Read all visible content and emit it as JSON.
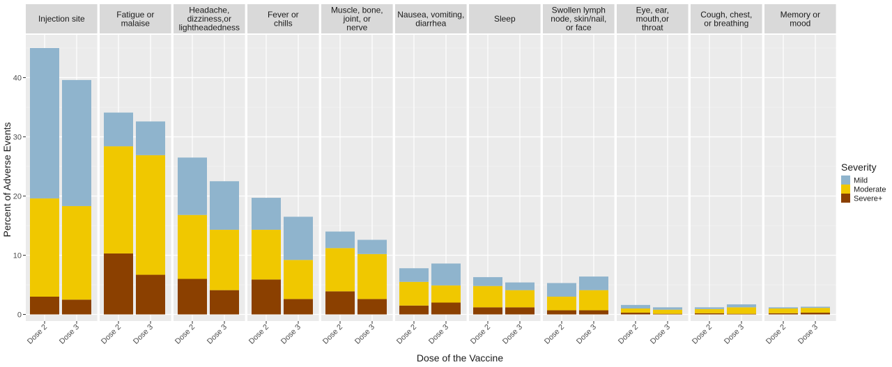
{
  "chart_data": {
    "type": "bar",
    "stacked": true,
    "facets": [
      "Injection site",
      "Fatigue or malaise",
      "Headache, dizziness,or lightheadedness",
      "Fever or chills",
      "Muscle, bone, joint, or nerve",
      "Nausea, vomiting, diarrhea",
      "Sleep",
      "Swollen lymph node, skin/nail, or face",
      "Eye, ear, mouth,or throat",
      "Cough, chest, or breathing",
      "Memory or mood"
    ],
    "facet_labels": [
      [
        "Injection site"
      ],
      [
        "Fatigue or",
        "malaise"
      ],
      [
        "Headache,",
        "dizziness,or",
        "lightheadedness"
      ],
      [
        "Fever or",
        "chills"
      ],
      [
        "Muscle, bone,",
        "joint, or",
        "nerve"
      ],
      [
        "Nausea, vomiting,",
        "diarrhea"
      ],
      [
        "Sleep"
      ],
      [
        "Swollen lymph",
        "node, skin/nail,",
        "or face"
      ],
      [
        "Eye, ear,",
        "mouth,or",
        "throat"
      ],
      [
        "Cough, chest,",
        "or breathing"
      ],
      [
        "Memory or",
        "mood"
      ]
    ],
    "categories": [
      "Dose 2",
      "Dose 3"
    ],
    "series": [
      {
        "name": "Severe+",
        "color": "#8b4000",
        "values": [
          [
            3.0,
            2.5
          ],
          [
            10.3,
            6.7
          ],
          [
            6.0,
            4.1
          ],
          [
            5.9,
            2.6
          ],
          [
            3.9,
            2.6
          ],
          [
            1.5,
            2.0
          ],
          [
            1.2,
            1.2
          ],
          [
            0.7,
            0.7
          ],
          [
            0.3,
            0.1
          ],
          [
            0.2,
            0.1
          ],
          [
            0.2,
            0.3
          ]
        ]
      },
      {
        "name": "Moderate",
        "color": "#f0c800",
        "values": [
          [
            16.6,
            15.8
          ],
          [
            18.1,
            20.2
          ],
          [
            10.8,
            10.2
          ],
          [
            8.4,
            6.6
          ],
          [
            7.3,
            7.6
          ],
          [
            4.0,
            2.9
          ],
          [
            3.6,
            2.9
          ],
          [
            2.3,
            3.4
          ],
          [
            0.7,
            0.7
          ],
          [
            0.7,
            1.1
          ],
          [
            0.8,
            0.8
          ]
        ]
      },
      {
        "name": "Mild",
        "color": "#8fb4cd",
        "values": [
          [
            25.4,
            21.3
          ],
          [
            5.7,
            5.7
          ],
          [
            9.7,
            8.2
          ],
          [
            5.4,
            7.3
          ],
          [
            2.8,
            2.4
          ],
          [
            2.3,
            3.7
          ],
          [
            1.5,
            1.3
          ],
          [
            2.3,
            2.3
          ],
          [
            0.6,
            0.4
          ],
          [
            0.3,
            0.5
          ],
          [
            0.2,
            0.2
          ]
        ]
      }
    ],
    "ylim": [
      0,
      48.5
    ],
    "yticks": [
      0,
      10,
      20,
      30,
      40
    ],
    "xlabel": "Dose of the Vaccine",
    "ylabel": "Percent of Adverse Events",
    "legend": {
      "title": "Severity",
      "position": "right",
      "entries": [
        {
          "label": "Mild",
          "color": "#8fb4cd"
        },
        {
          "label": "Moderate",
          "color": "#f0c800"
        },
        {
          "label": "Severe+",
          "color": "#8b4000"
        }
      ]
    },
    "panel_background": "#ebebeb",
    "strip_background": "#d9d9d9",
    "grid": true
  }
}
